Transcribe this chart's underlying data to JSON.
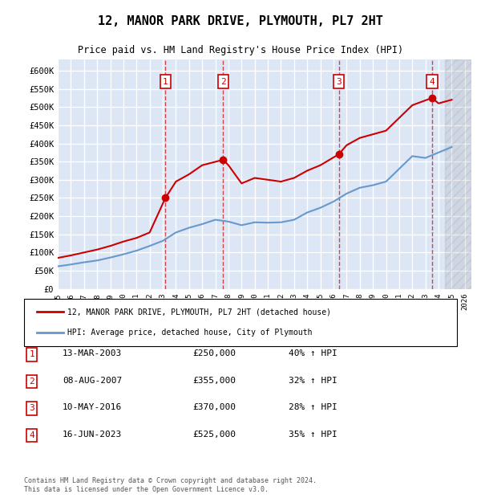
{
  "title": "12, MANOR PARK DRIVE, PLYMOUTH, PL7 2HT",
  "subtitle": "Price paid vs. HM Land Registry's House Price Index (HPI)",
  "ylabel_ticks": [
    "£0",
    "£50K",
    "£100K",
    "£150K",
    "£200K",
    "£250K",
    "£300K",
    "£350K",
    "£400K",
    "£450K",
    "£500K",
    "£550K",
    "£600K"
  ],
  "ylim": [
    0,
    620000
  ],
  "xlim_start": 1995.0,
  "xlim_end": 2026.5,
  "background_color": "#dce6f5",
  "plot_bg_color": "#dce6f5",
  "grid_color": "#ffffff",
  "sale_color": "#cc0000",
  "hpi_color": "#6699cc",
  "legend_label_sale": "12, MANOR PARK DRIVE, PLYMOUTH, PL7 2HT (detached house)",
  "legend_label_hpi": "HPI: Average price, detached house, City of Plymouth",
  "transactions": [
    {
      "num": 1,
      "date": "13-MAR-2003",
      "price": 250000,
      "hpi_pct": "40%",
      "x_year": 2003.2
    },
    {
      "num": 2,
      "date": "08-AUG-2007",
      "price": 355000,
      "hpi_pct": "32%",
      "x_year": 2007.6
    },
    {
      "num": 3,
      "date": "10-MAY-2016",
      "price": 370000,
      "hpi_pct": "28%",
      "x_year": 2016.4
    },
    {
      "num": 4,
      "date": "16-JUN-2023",
      "price": 525000,
      "hpi_pct": "35%",
      "x_year": 2023.5
    }
  ],
  "footer": "Contains HM Land Registry data © Crown copyright and database right 2024.\nThis data is licensed under the Open Government Licence v3.0.",
  "hpi_line": {
    "x": [
      1995,
      1996,
      1997,
      1998,
      1999,
      2000,
      2001,
      2002,
      2003,
      2004,
      2005,
      2006,
      2007,
      2008,
      2009,
      2010,
      2011,
      2012,
      2013,
      2014,
      2015,
      2016,
      2017,
      2018,
      2019,
      2020,
      2021,
      2022,
      2023,
      2024,
      2025
    ],
    "y": [
      62000,
      67000,
      73000,
      78000,
      86000,
      95000,
      105000,
      118000,
      132000,
      155000,
      168000,
      178000,
      190000,
      185000,
      175000,
      183000,
      182000,
      183000,
      190000,
      210000,
      223000,
      240000,
      262000,
      278000,
      285000,
      295000,
      330000,
      365000,
      360000,
      375000,
      390000
    ]
  },
  "sale_line": {
    "x": [
      1995,
      1996,
      1997,
      1998,
      1999,
      2000,
      2001,
      2002,
      2003.2,
      2004,
      2005,
      2006,
      2007.6,
      2008,
      2009,
      2010,
      2011,
      2012,
      2013,
      2014,
      2015,
      2016.4,
      2017,
      2018,
      2019,
      2020,
      2021,
      2022,
      2023.5,
      2024,
      2025
    ],
    "y": [
      85000,
      92000,
      100000,
      108000,
      118000,
      130000,
      140000,
      155000,
      250000,
      295000,
      315000,
      340000,
      355000,
      340000,
      290000,
      305000,
      300000,
      295000,
      305000,
      325000,
      340000,
      370000,
      395000,
      415000,
      425000,
      435000,
      470000,
      505000,
      525000,
      510000,
      520000
    ]
  }
}
